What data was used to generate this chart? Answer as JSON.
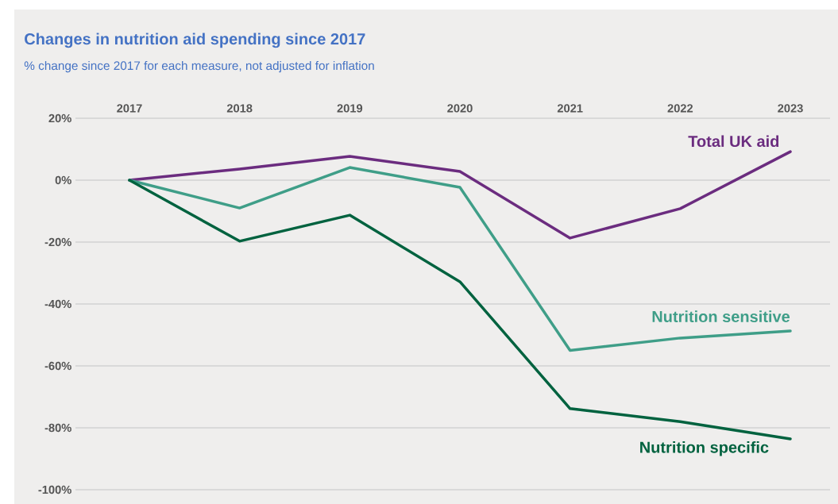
{
  "chart_data": {
    "type": "line",
    "title": "Changes in nutrition aid spending since 2017",
    "subtitle": "% change since 2017 for each measure, not adjusted for inflation",
    "categories": [
      "2017",
      "2018",
      "2019",
      "2020",
      "2021",
      "2022",
      "2023"
    ],
    "series": [
      {
        "name": "Total UK aid",
        "color": "#6b2c7f",
        "values": [
          0,
          3.6,
          7.7,
          2.8,
          -18.7,
          -9.2,
          9.2
        ]
      },
      {
        "name": "Nutrition sensitive",
        "color": "#3f9e88",
        "values": [
          0,
          -9,
          4.1,
          -2.3,
          -55,
          -51,
          -48.7
        ]
      },
      {
        "name": "Nutrition specific",
        "color": "#00623f",
        "values": [
          0,
          -19.7,
          -11.3,
          -32.8,
          -73.8,
          -78,
          -83.6
        ]
      }
    ],
    "ylim": [
      -100,
      20
    ],
    "yticks": [
      {
        "value": -100,
        "label": "-100%"
      },
      {
        "value": -80,
        "label": "-80%"
      },
      {
        "value": -60,
        "label": "-60%"
      },
      {
        "value": -40,
        "label": "-40%"
      },
      {
        "value": -20,
        "label": "-20%"
      },
      {
        "value": 0,
        "label": "0%"
      },
      {
        "value": 20,
        "label": "20%"
      }
    ],
    "grid": "y",
    "legend": false,
    "marker": "none",
    "line_style": "solid"
  }
}
